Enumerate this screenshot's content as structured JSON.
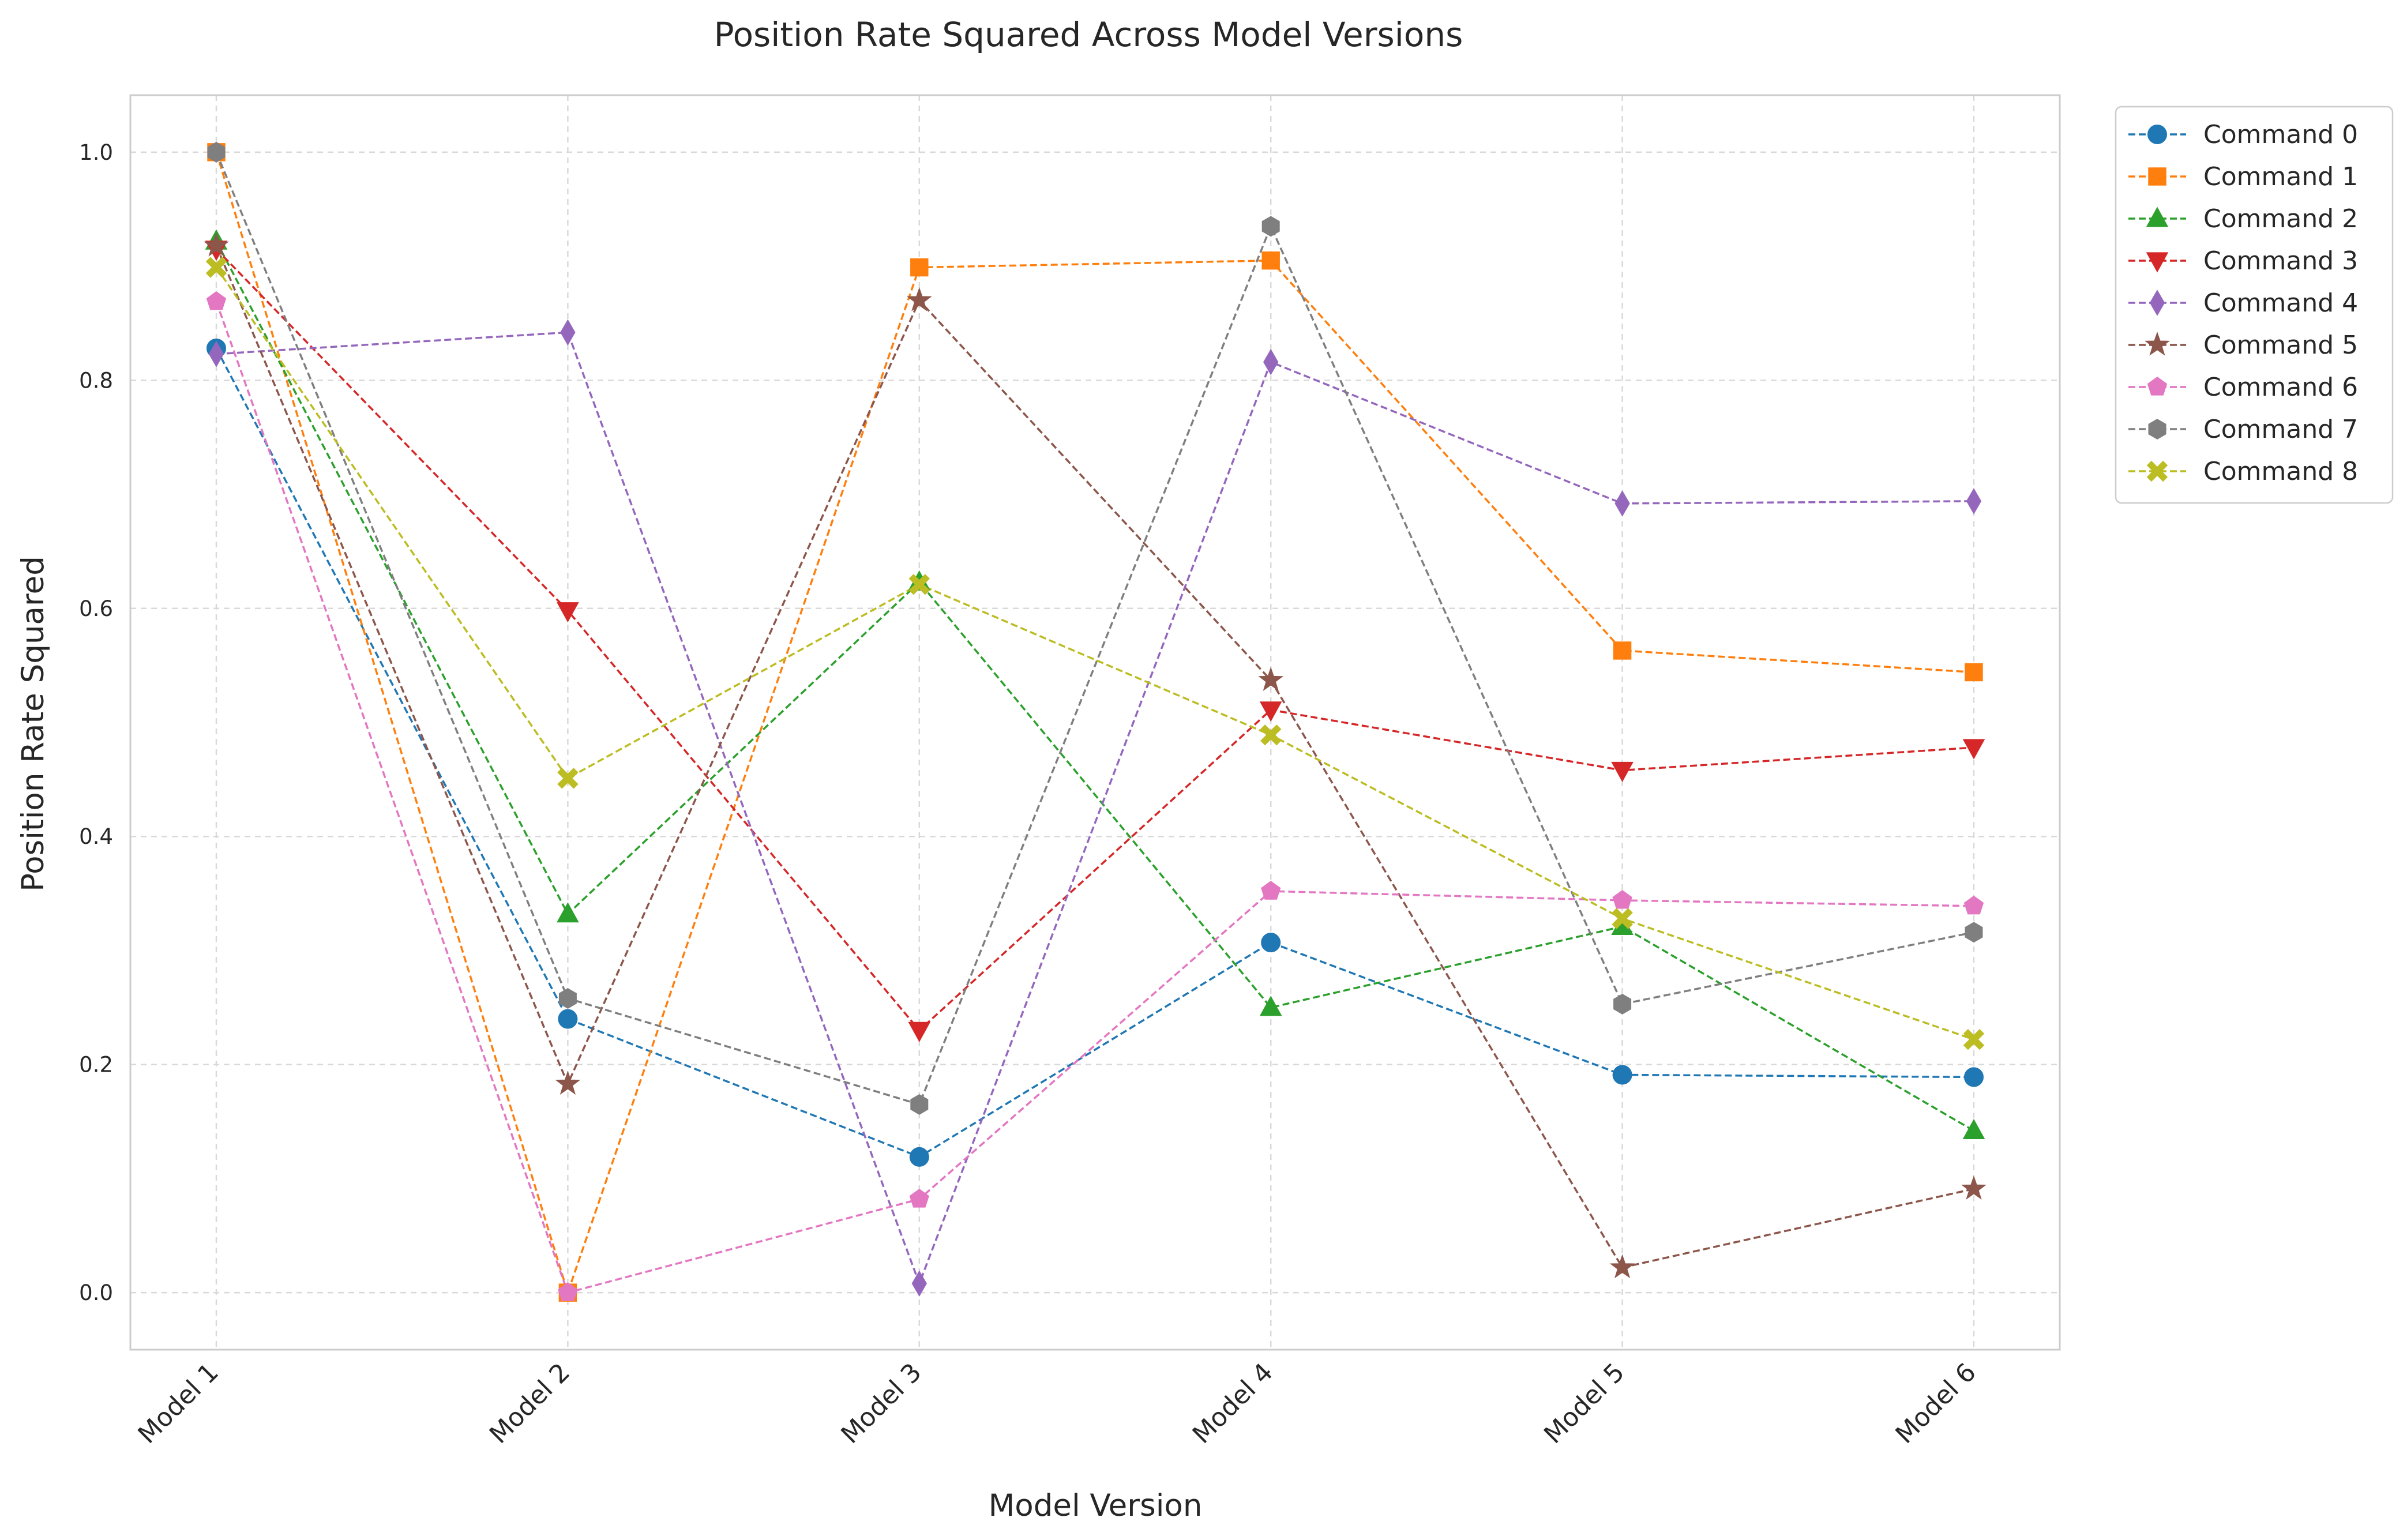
{
  "chart_data": {
    "type": "line",
    "title": "Position Rate Squared Across Model Versions",
    "xlabel": "Model Version",
    "ylabel": "Position Rate Squared",
    "categories": [
      "Model 1",
      "Model 2",
      "Model 3",
      "Model 4",
      "Model 5",
      "Model 6"
    ],
    "ylim": [
      -0.05,
      1.05
    ],
    "yticks": [
      "0.0",
      "0.2",
      "0.4",
      "0.6",
      "0.8",
      "1.0"
    ],
    "grid": true,
    "legend_position": "outside-top-right",
    "series": [
      {
        "name": "Command 0",
        "color": "#1f77b4",
        "marker": "circle",
        "values": [
          0.828,
          0.24,
          0.119,
          0.307,
          0.191,
          0.189
        ]
      },
      {
        "name": "Command 1",
        "color": "#ff7f0e",
        "marker": "square",
        "values": [
          1.0,
          0.0,
          0.899,
          0.905,
          0.563,
          0.544
        ]
      },
      {
        "name": "Command 2",
        "color": "#2ca02c",
        "marker": "triangle-up",
        "values": [
          0.922,
          0.332,
          0.623,
          0.25,
          0.321,
          0.142
        ]
      },
      {
        "name": "Command 3",
        "color": "#d62728",
        "marker": "triangle-down",
        "values": [
          0.915,
          0.598,
          0.23,
          0.511,
          0.458,
          0.478
        ]
      },
      {
        "name": "Command 4",
        "color": "#9467bd",
        "marker": "diamond",
        "values": [
          0.823,
          0.842,
          0.008,
          0.816,
          0.692,
          0.694
        ]
      },
      {
        "name": "Command 5",
        "color": "#8c564b",
        "marker": "star",
        "values": [
          0.918,
          0.183,
          0.87,
          0.537,
          0.022,
          0.091
        ]
      },
      {
        "name": "Command 6",
        "color": "#e377c2",
        "marker": "pentagon",
        "values": [
          0.869,
          0.0,
          0.082,
          0.352,
          0.344,
          0.339
        ]
      },
      {
        "name": "Command 7",
        "color": "#7f7f7f",
        "marker": "hexagon",
        "values": [
          1.0,
          0.258,
          0.165,
          0.935,
          0.253,
          0.316
        ]
      },
      {
        "name": "Command 8",
        "color": "#bcbd22",
        "marker": "x-filled",
        "values": [
          0.899,
          0.451,
          0.621,
          0.489,
          0.328,
          0.222
        ]
      }
    ]
  }
}
